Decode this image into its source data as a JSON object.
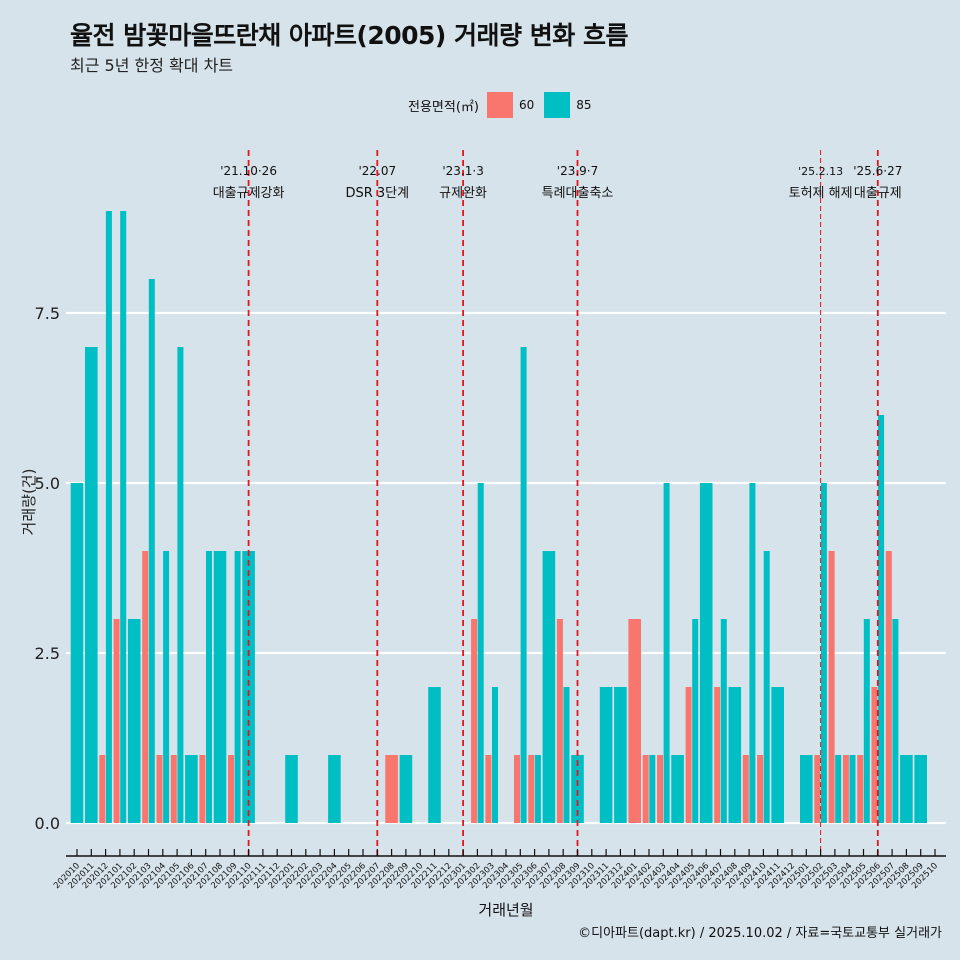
{
  "chart_data": {
    "type": "bar",
    "title": "율전 밤꽃마을뜨란채 아파트(2005) 거래량 변화 흐름",
    "subtitle": "최근 5년 한정 확대 차트",
    "xlabel": "거래년월",
    "ylabel": "거래량(건)",
    "ylim": [
      -0.5,
      9
    ],
    "yticks": [
      0.0,
      2.5,
      5.0,
      7.5
    ],
    "ytick_labels": [
      "0.0",
      "2.5",
      "5.0",
      "7.5"
    ],
    "grid": true,
    "legend": {
      "title": "전용면적(㎡)",
      "position": "top",
      "entries": [
        "60",
        "85"
      ]
    },
    "colors": {
      "60": "#f8766d",
      "85": "#00bfc4"
    },
    "categories": [
      "202010",
      "202011",
      "202012",
      "202101",
      "202102",
      "202103",
      "202104",
      "202105",
      "202106",
      "202107",
      "202108",
      "202109",
      "202110",
      "202111",
      "202112",
      "202201",
      "202202",
      "202203",
      "202204",
      "202205",
      "202206",
      "202207",
      "202208",
      "202209",
      "202210",
      "202211",
      "202212",
      "202301",
      "202302",
      "202303",
      "202304",
      "202305",
      "202306",
      "202307",
      "202308",
      "202309",
      "202310",
      "202311",
      "202312",
      "202401",
      "202402",
      "202403",
      "202404",
      "202405",
      "202406",
      "202407",
      "202408",
      "202409",
      "202410",
      "202411",
      "202412",
      "202501",
      "202502",
      "202503",
      "202504",
      "202505",
      "202506",
      "202507",
      "202508",
      "202509",
      "202510"
    ],
    "series": [
      {
        "name": "60",
        "values": [
          0,
          0,
          1,
          3,
          0,
          4,
          1,
          1,
          0,
          1,
          0,
          1,
          0,
          0,
          0,
          0,
          0,
          0,
          0,
          0,
          0,
          0,
          1,
          0,
          0,
          0,
          0,
          0,
          3,
          1,
          0,
          1,
          1,
          0,
          3,
          0,
          0,
          0,
          0,
          3,
          1,
          1,
          0,
          2,
          0,
          2,
          0,
          1,
          1,
          0,
          0,
          0,
          1,
          4,
          1,
          1,
          2,
          4,
          0,
          0,
          0
        ]
      },
      {
        "name": "85",
        "values": [
          5,
          7,
          9,
          9,
          3,
          8,
          4,
          7,
          1,
          4,
          4,
          4,
          4,
          0,
          0,
          1,
          0,
          0,
          1,
          0,
          0,
          0,
          0,
          1,
          0,
          2,
          0,
          0,
          5,
          2,
          0,
          7,
          1,
          4,
          2,
          1,
          0,
          2,
          2,
          0,
          1,
          5,
          1,
          3,
          5,
          3,
          2,
          5,
          4,
          2,
          0,
          1,
          5,
          1,
          1,
          3,
          6,
          3,
          1,
          1,
          0
        ]
      }
    ],
    "annotations": [
      {
        "x": "202110",
        "date": "'21.10·26",
        "label": "대출규제강화",
        "style": "thick"
      },
      {
        "x": "202207",
        "date": "'22.07",
        "label": "DSR 3단계",
        "style": "thick"
      },
      {
        "x": "202301",
        "date": "'23.1·3",
        "label": "규제완화",
        "style": "thick"
      },
      {
        "x": "202309",
        "date": "'23.9·7",
        "label": "특례대출축소",
        "style": "thick"
      },
      {
        "x": "202502",
        "date": "'25.2.13",
        "label": "토허제 해제",
        "style": "thin"
      },
      {
        "x": "202506",
        "date": "'25.6·27",
        "label": "대출규제",
        "style": "thick"
      }
    ],
    "caption": "©디아파트(dapt.kr) / 2025.10.02 / 자료=국토교통부 실거래가"
  }
}
